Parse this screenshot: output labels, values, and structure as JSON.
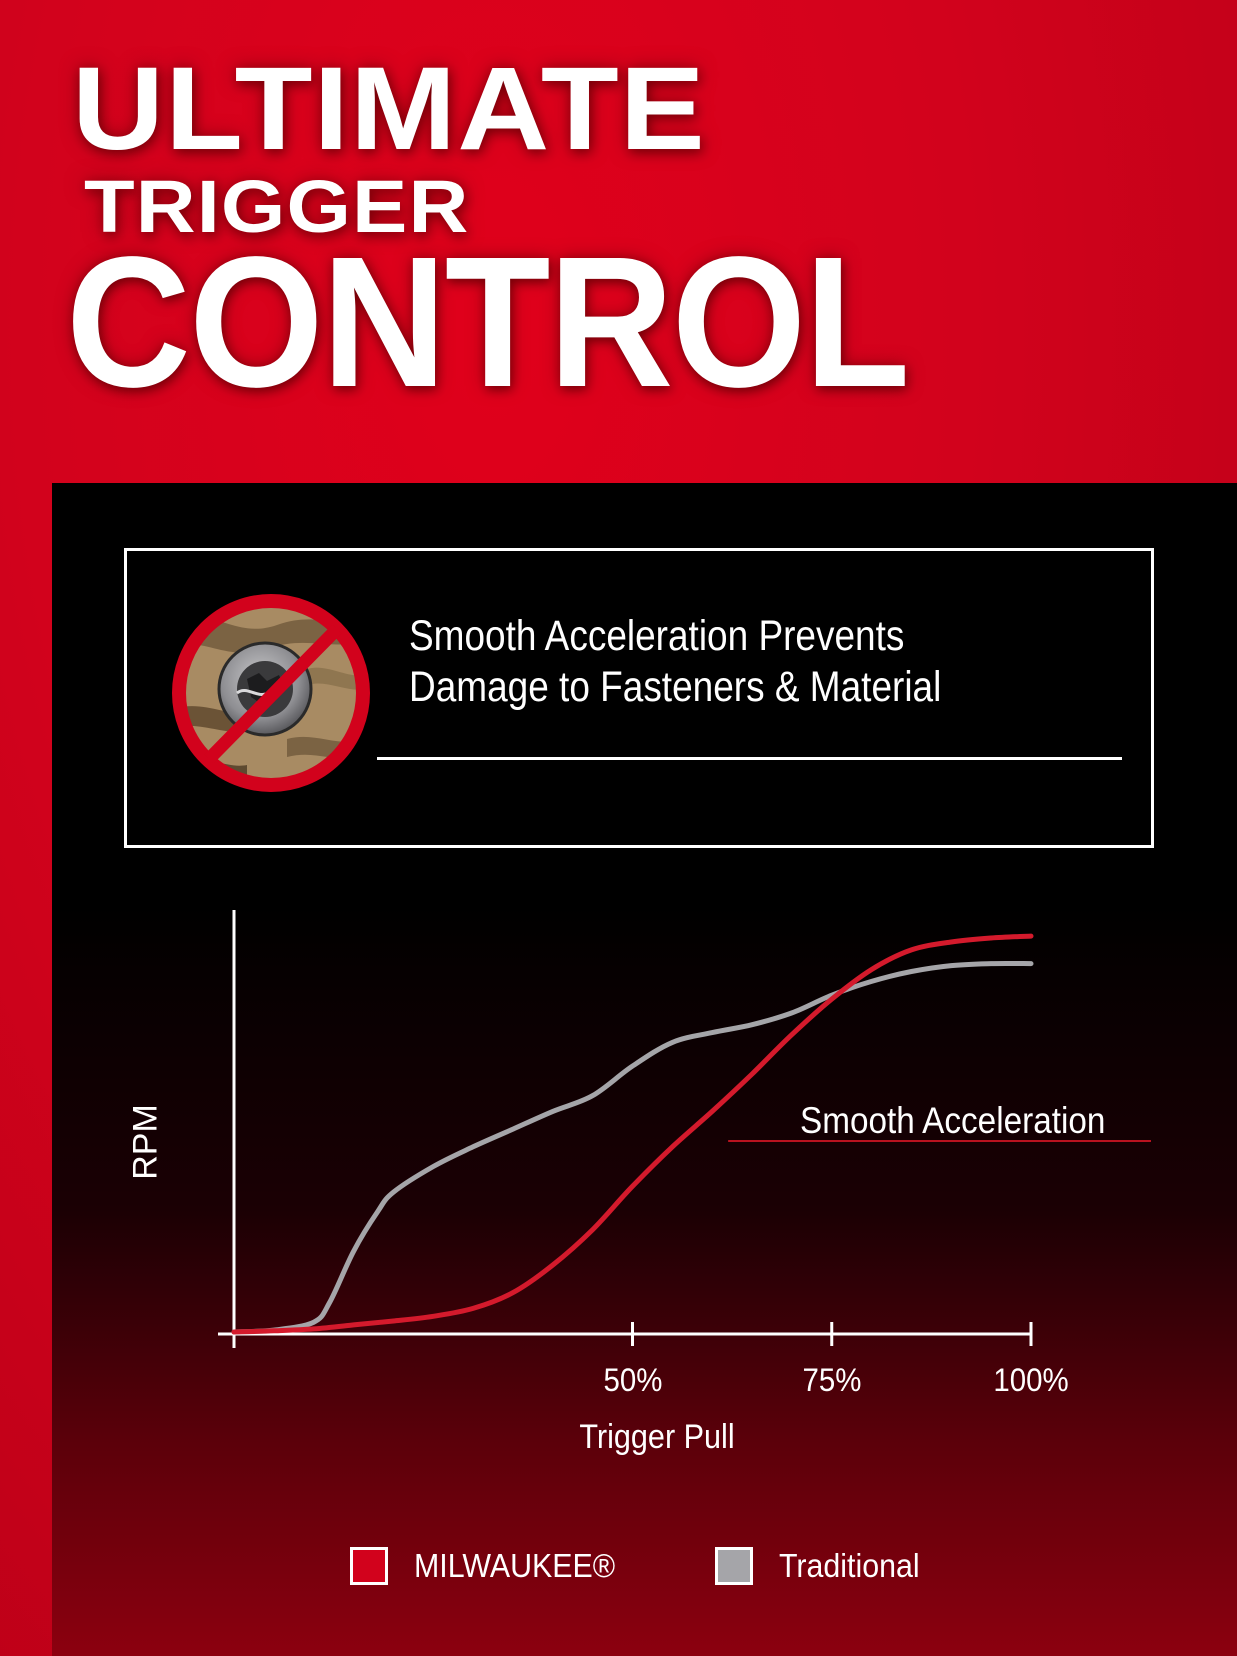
{
  "headline": {
    "line1": "ULTIMATE",
    "line2": "TRIGGER",
    "line3": "CONTROL"
  },
  "callout": {
    "line1": "Smooth Acceleration Prevents",
    "line2": "Damage to Fasteners & Material",
    "icon": "no-damaged-screw-icon"
  },
  "colors": {
    "brand_red": "#d2021c",
    "milwaukee_line": "#d41a2c",
    "traditional_line": "#a5a5a9",
    "panel": "#000000"
  },
  "chart_data": {
    "type": "line",
    "xlabel": "Trigger Pull",
    "ylabel": "RPM",
    "x_ticks": [
      {
        "value": 50,
        "label": "50%"
      },
      {
        "value": 75,
        "label": "75%"
      },
      {
        "value": 100,
        "label": "100%"
      }
    ],
    "xlim": [
      0,
      100
    ],
    "ylim": [
      0,
      100
    ],
    "y_ticks_shown": false,
    "grid": false,
    "legend": "bottom",
    "series": [
      {
        "name": "MILWAUKEE®",
        "color": "#d41a2c",
        "x": [
          0,
          5,
          10,
          15,
          20,
          25,
          30,
          35,
          40,
          45,
          50,
          55,
          60,
          65,
          70,
          75,
          80,
          85,
          90,
          95,
          100
        ],
        "y": [
          0.5,
          0.8,
          1.3,
          2.3,
          3.3,
          4.5,
          6.5,
          10.5,
          17.5,
          26.5,
          37.5,
          47.5,
          56.5,
          66,
          76,
          85,
          92.5,
          97.5,
          99.5,
          100.5,
          101
        ]
      },
      {
        "name": "Traditional",
        "color": "#a5a5a9",
        "x": [
          0,
          5,
          10,
          12,
          15,
          18,
          20,
          25,
          30,
          35,
          40,
          45,
          50,
          55,
          60,
          65,
          70,
          75,
          80,
          85,
          90,
          95,
          100
        ],
        "y": [
          0.5,
          1,
          3,
          8,
          21,
          31,
          36,
          42.5,
          47.5,
          52,
          56.5,
          60.5,
          68,
          74,
          76.5,
          78.5,
          81.5,
          86,
          89.5,
          92,
          93.5,
          94,
          94
        ]
      }
    ],
    "annotations": [
      {
        "text": "Smooth Acceleration",
        "x": 62,
        "y": 49
      }
    ]
  }
}
